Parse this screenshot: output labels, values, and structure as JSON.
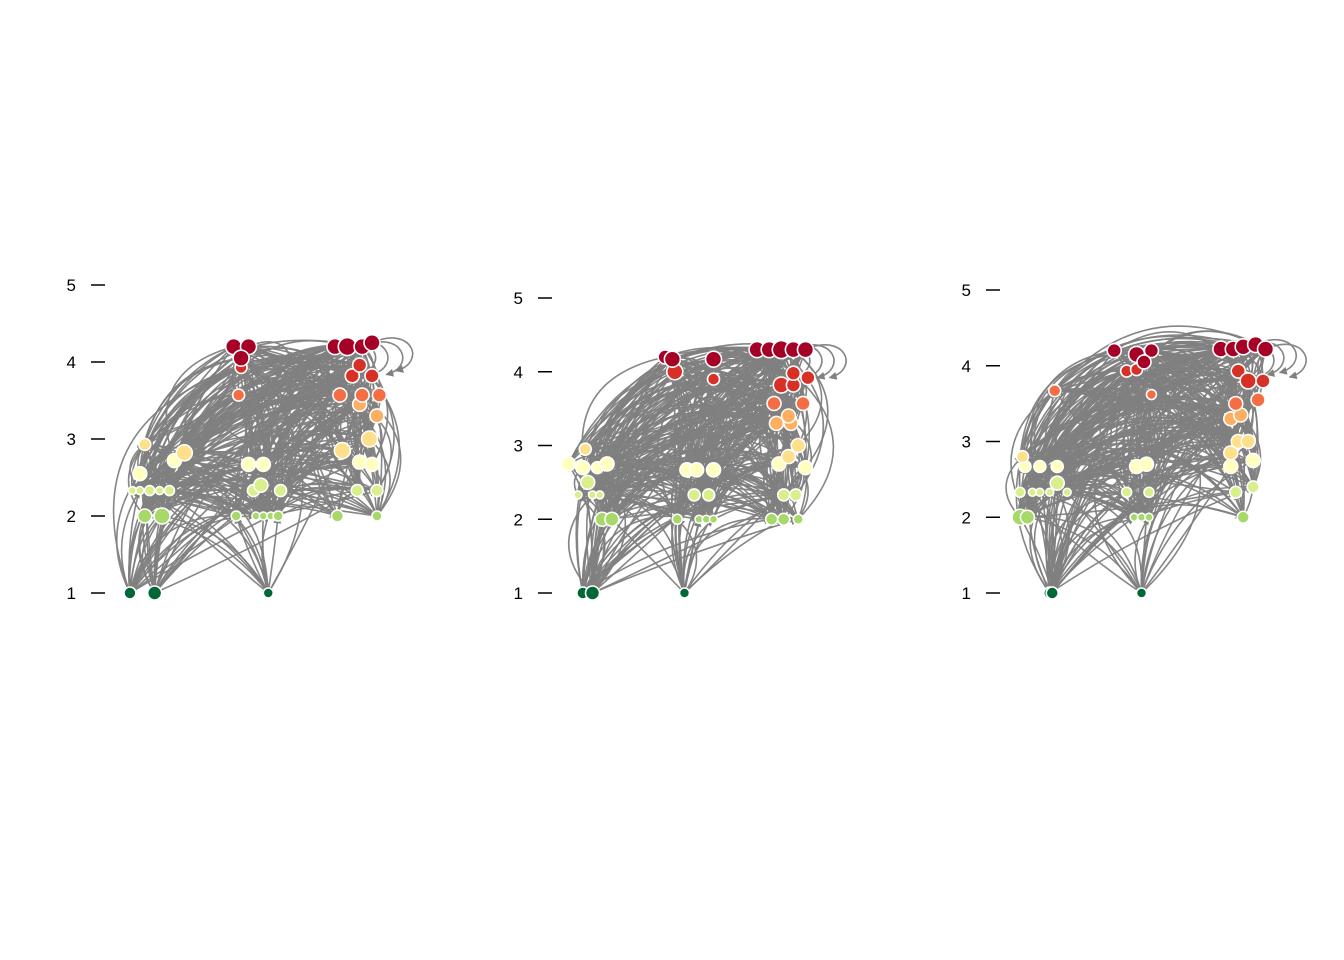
{
  "figure": {
    "type": "food-web trophic-level plots",
    "panel_count": 3
  },
  "colors": {
    "edge": "#808080",
    "node_stroke": "#ffffff",
    "palette_low_to_high": [
      "#006837",
      "#a6d96a",
      "#d9ef8b",
      "#ffffbf",
      "#fee08b",
      "#fdae61",
      "#f46d43",
      "#d73027",
      "#a50026"
    ]
  },
  "chart_data": [
    {
      "type": "scatter",
      "title": "",
      "xlabel": "",
      "ylabel": "",
      "ylim": [
        1,
        5
      ],
      "y_ticks": [
        "1",
        "2",
        "3",
        "4",
        "5"
      ],
      "grid": false,
      "x_axis_visible": false,
      "nodes": [
        {
          "x": 0.02,
          "y": 1.0,
          "s": 6,
          "c": "#006837"
        },
        {
          "x": 0.12,
          "y": 1.0,
          "s": 7,
          "c": "#006837"
        },
        {
          "x": 0.58,
          "y": 1.0,
          "s": 5,
          "c": "#006837"
        },
        {
          "x": 0.08,
          "y": 2.0,
          "s": 7,
          "c": "#a6d96a"
        },
        {
          "x": 0.15,
          "y": 2.0,
          "s": 8,
          "c": "#a6d96a"
        },
        {
          "x": 0.45,
          "y": 2.0,
          "s": 5,
          "c": "#a6d96a"
        },
        {
          "x": 0.53,
          "y": 2.0,
          "s": 4,
          "c": "#a6d96a"
        },
        {
          "x": 0.56,
          "y": 2.0,
          "s": 4,
          "c": "#a6d96a"
        },
        {
          "x": 0.59,
          "y": 2.0,
          "s": 4,
          "c": "#a6d96a"
        },
        {
          "x": 0.62,
          "y": 2.0,
          "s": 5,
          "c": "#a6d96a"
        },
        {
          "x": 0.86,
          "y": 2.0,
          "s": 6,
          "c": "#a6d96a"
        },
        {
          "x": 1.02,
          "y": 2.0,
          "s": 5,
          "c": "#a6d96a"
        },
        {
          "x": 0.03,
          "y": 2.33,
          "s": 4,
          "c": "#d9ef8b"
        },
        {
          "x": 0.06,
          "y": 2.33,
          "s": 4,
          "c": "#d9ef8b"
        },
        {
          "x": 0.1,
          "y": 2.33,
          "s": 5,
          "c": "#d9ef8b"
        },
        {
          "x": 0.14,
          "y": 2.33,
          "s": 4,
          "c": "#d9ef8b"
        },
        {
          "x": 0.18,
          "y": 2.33,
          "s": 5,
          "c": "#d9ef8b"
        },
        {
          "x": 0.52,
          "y": 2.33,
          "s": 6,
          "c": "#d9ef8b"
        },
        {
          "x": 0.55,
          "y": 2.4,
          "s": 7,
          "c": "#d9ef8b"
        },
        {
          "x": 0.63,
          "y": 2.33,
          "s": 6,
          "c": "#d9ef8b"
        },
        {
          "x": 0.94,
          "y": 2.33,
          "s": 6,
          "c": "#d9ef8b"
        },
        {
          "x": 1.02,
          "y": 2.33,
          "s": 6,
          "c": "#d9ef8b"
        },
        {
          "x": 0.06,
          "y": 2.55,
          "s": 7,
          "c": "#ffffbf"
        },
        {
          "x": 0.2,
          "y": 2.72,
          "s": 7,
          "c": "#ffffbf"
        },
        {
          "x": 0.5,
          "y": 2.67,
          "s": 7,
          "c": "#ffffbf"
        },
        {
          "x": 0.56,
          "y": 2.67,
          "s": 7,
          "c": "#ffffbf"
        },
        {
          "x": 0.95,
          "y": 2.7,
          "s": 7,
          "c": "#ffffbf"
        },
        {
          "x": 1.0,
          "y": 2.67,
          "s": 7,
          "c": "#ffffbf"
        },
        {
          "x": 0.08,
          "y": 2.93,
          "s": 6,
          "c": "#fee08b"
        },
        {
          "x": 0.24,
          "y": 2.82,
          "s": 8,
          "c": "#fee08b"
        },
        {
          "x": 0.88,
          "y": 2.85,
          "s": 8,
          "c": "#fee08b"
        },
        {
          "x": 0.99,
          "y": 3.0,
          "s": 8,
          "c": "#fee08b"
        },
        {
          "x": 1.02,
          "y": 3.3,
          "s": 7,
          "c": "#fdae61"
        },
        {
          "x": 0.95,
          "y": 3.45,
          "s": 7,
          "c": "#fdae61"
        },
        {
          "x": 0.46,
          "y": 3.57,
          "s": 6,
          "c": "#f46d43"
        },
        {
          "x": 0.87,
          "y": 3.57,
          "s": 7,
          "c": "#f46d43"
        },
        {
          "x": 0.96,
          "y": 3.57,
          "s": 7,
          "c": "#f46d43"
        },
        {
          "x": 1.03,
          "y": 3.57,
          "s": 7,
          "c": "#f46d43"
        },
        {
          "x": 0.47,
          "y": 3.93,
          "s": 6,
          "c": "#d73027"
        },
        {
          "x": 0.92,
          "y": 3.82,
          "s": 7,
          "c": "#d73027"
        },
        {
          "x": 1.0,
          "y": 3.82,
          "s": 7,
          "c": "#d73027"
        },
        {
          "x": 0.95,
          "y": 3.96,
          "s": 7,
          "c": "#d73027"
        },
        {
          "x": 0.44,
          "y": 4.2,
          "s": 8,
          "c": "#a50026"
        },
        {
          "x": 0.5,
          "y": 4.2,
          "s": 8,
          "c": "#a50026"
        },
        {
          "x": 0.47,
          "y": 4.05,
          "s": 8,
          "c": "#a50026"
        },
        {
          "x": 0.85,
          "y": 4.2,
          "s": 8,
          "c": "#a50026"
        },
        {
          "x": 0.9,
          "y": 4.2,
          "s": 9,
          "c": "#a50026"
        },
        {
          "x": 0.96,
          "y": 4.2,
          "s": 8,
          "c": "#a50026"
        },
        {
          "x": 1.0,
          "y": 4.25,
          "s": 8,
          "c": "#a50026"
        }
      ]
    },
    {
      "type": "scatter",
      "title": "",
      "xlabel": "",
      "ylabel": "",
      "ylim": [
        1,
        5
      ],
      "y_ticks": [
        "1",
        "2",
        "3",
        "4",
        "5"
      ],
      "grid": false,
      "x_axis_visible": false,
      "nodes": [
        {
          "x": 0.02,
          "y": 1.0,
          "s": 6,
          "c": "#006837"
        },
        {
          "x": 0.06,
          "y": 1.0,
          "s": 7,
          "c": "#006837"
        },
        {
          "x": 0.44,
          "y": 1.0,
          "s": 5,
          "c": "#006837"
        },
        {
          "x": 0.1,
          "y": 2.0,
          "s": 7,
          "c": "#a6d96a"
        },
        {
          "x": 0.14,
          "y": 2.0,
          "s": 7,
          "c": "#a6d96a"
        },
        {
          "x": 0.41,
          "y": 2.0,
          "s": 5,
          "c": "#a6d96a"
        },
        {
          "x": 0.5,
          "y": 2.0,
          "s": 4,
          "c": "#a6d96a"
        },
        {
          "x": 0.53,
          "y": 2.0,
          "s": 4,
          "c": "#a6d96a"
        },
        {
          "x": 0.56,
          "y": 2.0,
          "s": 4,
          "c": "#a6d96a"
        },
        {
          "x": 0.8,
          "y": 2.0,
          "s": 6,
          "c": "#a6d96a"
        },
        {
          "x": 0.85,
          "y": 2.0,
          "s": 6,
          "c": "#a6d96a"
        },
        {
          "x": 0.91,
          "y": 2.0,
          "s": 5,
          "c": "#a6d96a"
        },
        {
          "x": 0.0,
          "y": 2.33,
          "s": 4,
          "c": "#d9ef8b"
        },
        {
          "x": 0.06,
          "y": 2.33,
          "s": 4,
          "c": "#d9ef8b"
        },
        {
          "x": 0.09,
          "y": 2.33,
          "s": 4,
          "c": "#d9ef8b"
        },
        {
          "x": 0.04,
          "y": 2.5,
          "s": 7,
          "c": "#d9ef8b"
        },
        {
          "x": 0.48,
          "y": 2.33,
          "s": 6,
          "c": "#d9ef8b"
        },
        {
          "x": 0.54,
          "y": 2.33,
          "s": 6,
          "c": "#d9ef8b"
        },
        {
          "x": 0.85,
          "y": 2.33,
          "s": 6,
          "c": "#d9ef8b"
        },
        {
          "x": 0.9,
          "y": 2.33,
          "s": 6,
          "c": "#d9ef8b"
        },
        {
          "x": -0.04,
          "y": 2.75,
          "s": 7,
          "c": "#ffffbf"
        },
        {
          "x": 0.02,
          "y": 2.7,
          "s": 7,
          "c": "#ffffbf"
        },
        {
          "x": 0.08,
          "y": 2.7,
          "s": 6,
          "c": "#ffffbf"
        },
        {
          "x": 0.12,
          "y": 2.75,
          "s": 7,
          "c": "#ffffbf"
        },
        {
          "x": 0.45,
          "y": 2.67,
          "s": 7,
          "c": "#ffffbf"
        },
        {
          "x": 0.49,
          "y": 2.67,
          "s": 7,
          "c": "#ffffbf"
        },
        {
          "x": 0.56,
          "y": 2.67,
          "s": 7,
          "c": "#ffffbf"
        },
        {
          "x": 0.83,
          "y": 2.75,
          "s": 7,
          "c": "#ffffbf"
        },
        {
          "x": 0.94,
          "y": 2.7,
          "s": 7,
          "c": "#ffffbf"
        },
        {
          "x": 0.03,
          "y": 2.95,
          "s": 6,
          "c": "#fee08b"
        },
        {
          "x": 0.87,
          "y": 2.85,
          "s": 7,
          "c": "#fee08b"
        },
        {
          "x": 0.91,
          "y": 3.0,
          "s": 7,
          "c": "#fee08b"
        },
        {
          "x": 0.82,
          "y": 3.3,
          "s": 7,
          "c": "#fdae61"
        },
        {
          "x": 0.88,
          "y": 3.3,
          "s": 7,
          "c": "#fdae61"
        },
        {
          "x": 0.87,
          "y": 3.4,
          "s": 7,
          "c": "#fdae61"
        },
        {
          "x": 0.81,
          "y": 3.57,
          "s": 7,
          "c": "#f46d43"
        },
        {
          "x": 0.93,
          "y": 3.57,
          "s": 7,
          "c": "#f46d43"
        },
        {
          "x": 0.56,
          "y": 3.9,
          "s": 6,
          "c": "#d73027"
        },
        {
          "x": 0.84,
          "y": 3.82,
          "s": 8,
          "c": "#d73027"
        },
        {
          "x": 0.89,
          "y": 3.82,
          "s": 7,
          "c": "#d73027"
        },
        {
          "x": 0.89,
          "y": 3.98,
          "s": 7,
          "c": "#d73027"
        },
        {
          "x": 0.95,
          "y": 3.92,
          "s": 7,
          "c": "#d73027"
        },
        {
          "x": 0.4,
          "y": 4.0,
          "s": 8,
          "c": "#d73027"
        },
        {
          "x": 0.36,
          "y": 4.2,
          "s": 7,
          "c": "#a50026"
        },
        {
          "x": 0.39,
          "y": 4.17,
          "s": 8,
          "c": "#a50026"
        },
        {
          "x": 0.56,
          "y": 4.17,
          "s": 8,
          "c": "#a50026"
        },
        {
          "x": 0.74,
          "y": 4.3,
          "s": 8,
          "c": "#a50026"
        },
        {
          "x": 0.79,
          "y": 4.3,
          "s": 8,
          "c": "#a50026"
        },
        {
          "x": 0.84,
          "y": 4.3,
          "s": 9,
          "c": "#a50026"
        },
        {
          "x": 0.89,
          "y": 4.3,
          "s": 8,
          "c": "#a50026"
        },
        {
          "x": 0.94,
          "y": 4.3,
          "s": 8,
          "c": "#a50026"
        }
      ]
    },
    {
      "type": "scatter",
      "title": "",
      "xlabel": "",
      "ylabel": "",
      "ylim": [
        1,
        5
      ],
      "y_ticks": [
        "1",
        "2",
        "3",
        "4",
        "5"
      ],
      "grid": false,
      "x_axis_visible": false,
      "nodes": [
        {
          "x": 0.12,
          "y": 1.0,
          "s": 6,
          "c": "#006837"
        },
        {
          "x": 0.13,
          "y": 1.0,
          "s": 6,
          "c": "#006837"
        },
        {
          "x": 0.49,
          "y": 1.0,
          "s": 5,
          "c": "#006837"
        },
        {
          "x": 0.0,
          "y": 2.0,
          "s": 8,
          "c": "#a6d96a"
        },
        {
          "x": 0.03,
          "y": 2.0,
          "s": 7,
          "c": "#a6d96a"
        },
        {
          "x": 0.46,
          "y": 2.0,
          "s": 4,
          "c": "#a6d96a"
        },
        {
          "x": 0.49,
          "y": 2.0,
          "s": 4,
          "c": "#a6d96a"
        },
        {
          "x": 0.52,
          "y": 2.0,
          "s": 4,
          "c": "#a6d96a"
        },
        {
          "x": 0.9,
          "y": 2.0,
          "s": 6,
          "c": "#a6d96a"
        },
        {
          "x": 0.0,
          "y": 2.33,
          "s": 5,
          "c": "#d9ef8b"
        },
        {
          "x": 0.05,
          "y": 2.33,
          "s": 4,
          "c": "#d9ef8b"
        },
        {
          "x": 0.08,
          "y": 2.33,
          "s": 4,
          "c": "#d9ef8b"
        },
        {
          "x": 0.12,
          "y": 2.33,
          "s": 4,
          "c": "#d9ef8b"
        },
        {
          "x": 0.15,
          "y": 2.45,
          "s": 7,
          "c": "#d9ef8b"
        },
        {
          "x": 0.19,
          "y": 2.33,
          "s": 4,
          "c": "#d9ef8b"
        },
        {
          "x": 0.43,
          "y": 2.33,
          "s": 5,
          "c": "#d9ef8b"
        },
        {
          "x": 0.52,
          "y": 2.33,
          "s": 5,
          "c": "#d9ef8b"
        },
        {
          "x": 0.87,
          "y": 2.33,
          "s": 6,
          "c": "#d9ef8b"
        },
        {
          "x": 0.94,
          "y": 2.4,
          "s": 6,
          "c": "#d9ef8b"
        },
        {
          "x": 0.02,
          "y": 2.67,
          "s": 6,
          "c": "#ffffbf"
        },
        {
          "x": 0.08,
          "y": 2.67,
          "s": 6,
          "c": "#ffffbf"
        },
        {
          "x": 0.15,
          "y": 2.67,
          "s": 6,
          "c": "#ffffbf"
        },
        {
          "x": 0.47,
          "y": 2.67,
          "s": 7,
          "c": "#ffffbf"
        },
        {
          "x": 0.51,
          "y": 2.7,
          "s": 7,
          "c": "#ffffbf"
        },
        {
          "x": 0.85,
          "y": 2.67,
          "s": 7,
          "c": "#ffffbf"
        },
        {
          "x": 0.94,
          "y": 2.75,
          "s": 7,
          "c": "#ffffbf"
        },
        {
          "x": 0.01,
          "y": 2.8,
          "s": 6,
          "c": "#fee08b"
        },
        {
          "x": 0.85,
          "y": 2.85,
          "s": 7,
          "c": "#fee08b"
        },
        {
          "x": 0.88,
          "y": 3.0,
          "s": 7,
          "c": "#fee08b"
        },
        {
          "x": 0.92,
          "y": 3.0,
          "s": 7,
          "c": "#fee08b"
        },
        {
          "x": 0.85,
          "y": 3.3,
          "s": 7,
          "c": "#fdae61"
        },
        {
          "x": 0.89,
          "y": 3.35,
          "s": 7,
          "c": "#fdae61"
        },
        {
          "x": 0.14,
          "y": 3.67,
          "s": 6,
          "c": "#f46d43"
        },
        {
          "x": 0.87,
          "y": 3.5,
          "s": 7,
          "c": "#f46d43"
        },
        {
          "x": 0.96,
          "y": 3.55,
          "s": 7,
          "c": "#f46d43"
        },
        {
          "x": 0.53,
          "y": 3.62,
          "s": 5,
          "c": "#f46d43"
        },
        {
          "x": 0.43,
          "y": 3.93,
          "s": 6,
          "c": "#d73027"
        },
        {
          "x": 0.47,
          "y": 3.95,
          "s": 6,
          "c": "#d73027"
        },
        {
          "x": 0.88,
          "y": 3.93,
          "s": 7,
          "c": "#d73027"
        },
        {
          "x": 0.92,
          "y": 3.8,
          "s": 8,
          "c": "#d73027"
        },
        {
          "x": 0.98,
          "y": 3.8,
          "s": 7,
          "c": "#d73027"
        },
        {
          "x": 0.38,
          "y": 4.2,
          "s": 7,
          "c": "#a50026"
        },
        {
          "x": 0.47,
          "y": 4.15,
          "s": 8,
          "c": "#a50026"
        },
        {
          "x": 0.53,
          "y": 4.2,
          "s": 7,
          "c": "#a50026"
        },
        {
          "x": 0.5,
          "y": 4.05,
          "s": 7,
          "c": "#a50026"
        },
        {
          "x": 0.81,
          "y": 4.22,
          "s": 8,
          "c": "#a50026"
        },
        {
          "x": 0.86,
          "y": 4.22,
          "s": 8,
          "c": "#a50026"
        },
        {
          "x": 0.9,
          "y": 4.25,
          "s": 8,
          "c": "#a50026"
        },
        {
          "x": 0.95,
          "y": 4.28,
          "s": 8,
          "c": "#a50026"
        },
        {
          "x": 0.99,
          "y": 4.22,
          "s": 8,
          "c": "#a50026"
        }
      ]
    }
  ]
}
